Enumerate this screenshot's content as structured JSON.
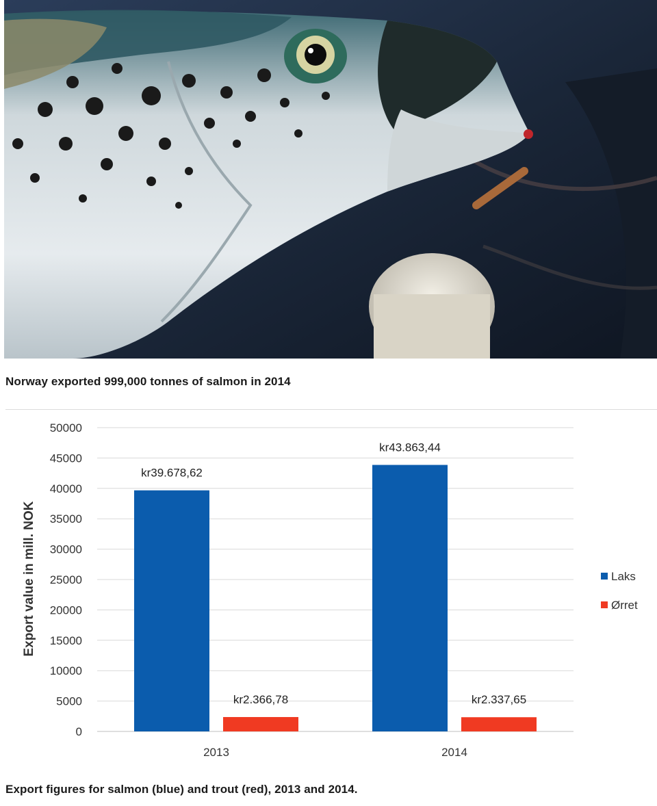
{
  "photo_caption": "Norway exported 999,000 tonnes of salmon in 2014",
  "chart_caption": "Export figures for salmon (blue) and trout (red), 2013 and 2014.",
  "chart_data": {
    "type": "bar",
    "categories": [
      "2013",
      "2014"
    ],
    "series": [
      {
        "name": "Laks",
        "color": "#0b5cad",
        "values": [
          39678.62,
          43863.44
        ],
        "labels": [
          "kr39.678,62",
          "kr43.863,44"
        ]
      },
      {
        "name": "Ørret",
        "color": "#f03a22",
        "values": [
          2366.78,
          2337.65
        ],
        "labels": [
          "kr2.366,78",
          "kr2.337,65"
        ]
      }
    ],
    "ylabel": "Export value in mill. NOK",
    "ylim": [
      0,
      50000
    ],
    "yticks": [
      "0",
      "5000",
      "10000",
      "15000",
      "20000",
      "25000",
      "30000",
      "35000",
      "40000",
      "45000",
      "50000"
    ],
    "grid": true,
    "legend": "right"
  }
}
